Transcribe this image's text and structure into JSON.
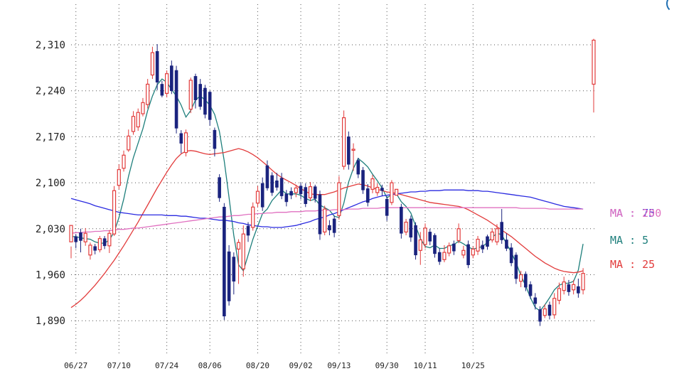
{
  "chart_data": {
    "type": "candlestick",
    "title": "",
    "ylim": [
      1860,
      2370
    ],
    "yticks": [
      "2,310",
      "2,240",
      "2,170",
      "2,100",
      "2,030",
      "1,960",
      "1,890"
    ],
    "ytick_values": [
      2310,
      2240,
      2170,
      2100,
      2030,
      1960,
      1890
    ],
    "xticks": [
      {
        "label": "06/27",
        "index": 1
      },
      {
        "label": "07/10",
        "index": 10
      },
      {
        "label": "07/24",
        "index": 20
      },
      {
        "label": "08/06",
        "index": 29
      },
      {
        "label": "08/20",
        "index": 39
      },
      {
        "label": "09/02",
        "index": 48
      },
      {
        "label": "09/13",
        "index": 56
      },
      {
        "label": "09/30",
        "index": 66
      },
      {
        "label": "10/11",
        "index": 74
      },
      {
        "label": "10/25",
        "index": 84
      }
    ],
    "grid": true,
    "up_color": "#e23b3b",
    "down_color": "#1a237e",
    "candles": [
      [
        2010,
        2035,
        2003,
        1985
      ],
      [
        2018,
        2010,
        2022,
        2000
      ],
      [
        2024,
        2012,
        2030,
        1994
      ],
      [
        2010,
        2023,
        2031,
        2004
      ],
      [
        1990,
        2005,
        2009,
        1983
      ],
      [
        2003,
        1997,
        2007,
        1991
      ],
      [
        1998,
        2015,
        2019,
        1994
      ],
      [
        2015,
        2004,
        2019,
        1999
      ],
      [
        2004,
        2023,
        2028,
        1993
      ],
      [
        2022,
        2088,
        2095,
        2019
      ],
      [
        2096,
        2120,
        2128,
        2090
      ],
      [
        2122,
        2142,
        2149,
        2117
      ],
      [
        2150,
        2171,
        2181,
        2147
      ],
      [
        2178,
        2201,
        2209,
        2173
      ],
      [
        2185,
        2207,
        2213,
        2179
      ],
      [
        2205,
        2222,
        2229,
        2201
      ],
      [
        2219,
        2250,
        2258,
        2213
      ],
      [
        2264,
        2298,
        2307,
        2258
      ],
      [
        2300,
        2253,
        2311,
        2241
      ],
      [
        2250,
        2233,
        2255,
        2230
      ],
      [
        2236,
        2266,
        2271,
        2230
      ],
      [
        2278,
        2240,
        2286,
        2235
      ],
      [
        2271,
        2183,
        2278,
        2175
      ],
      [
        2175,
        2160,
        2180,
        2145
      ],
      [
        2146,
        2176,
        2181,
        2140
      ],
      [
        2212,
        2256,
        2260,
        2206
      ],
      [
        2262,
        2226,
        2266,
        2213
      ],
      [
        2250,
        2216,
        2258,
        2211
      ],
      [
        2244,
        2204,
        2249,
        2198
      ],
      [
        2238,
        2196,
        2240,
        2187
      ],
      [
        2180,
        2152,
        2184,
        2140
      ],
      [
        2108,
        2077,
        2113,
        2071
      ],
      [
        2063,
        1897,
        2069,
        1891
      ],
      [
        1995,
        1920,
        2005,
        1913
      ],
      [
        1987,
        1950,
        1994,
        1930
      ],
      [
        1999,
        2009,
        2014,
        1946
      ],
      [
        1969,
        2022,
        2035,
        1957
      ],
      [
        2034,
        2020,
        2040,
        2010
      ],
      [
        2032,
        2063,
        2070,
        2027
      ],
      [
        2069,
        2087,
        2095,
        2063
      ],
      [
        2099,
        2063,
        2108,
        2057
      ],
      [
        2126,
        2092,
        2134,
        2088
      ],
      [
        2111,
        2085,
        2116,
        2080
      ],
      [
        2103,
        2093,
        2115,
        2088
      ],
      [
        2107,
        2080,
        2115,
        2075
      ],
      [
        2083,
        2071,
        2089,
        2064
      ],
      [
        2087,
        2081,
        2093,
        2075
      ],
      [
        2085,
        2092,
        2097,
        2078
      ],
      [
        2095,
        2083,
        2100,
        2075
      ],
      [
        2093,
        2068,
        2099,
        2063
      ],
      [
        2077,
        2094,
        2101,
        2072
      ],
      [
        2094,
        2076,
        2097,
        2070
      ],
      [
        2082,
        2022,
        2088,
        2013
      ],
      [
        2025,
        2060,
        2065,
        2020
      ],
      [
        2035,
        2028,
        2043,
        2020
      ],
      [
        2045,
        2024,
        2050,
        2017
      ],
      [
        2050,
        2100,
        2110,
        2044
      ],
      [
        2125,
        2199,
        2210,
        2120
      ],
      [
        2170,
        2128,
        2178,
        2120
      ],
      [
        2150,
        2151,
        2160,
        2118
      ],
      [
        2134,
        2113,
        2138,
        2107
      ],
      [
        2119,
        2089,
        2124,
        2083
      ],
      [
        2091,
        2070,
        2098,
        2064
      ],
      [
        2090,
        2106,
        2112,
        2084
      ],
      [
        2085,
        2093,
        2099,
        2080
      ],
      [
        2092,
        2088,
        2097,
        2080
      ],
      [
        2075,
        2050,
        2079,
        2042
      ],
      [
        2070,
        2100,
        2104,
        2066
      ],
      [
        2081,
        2090,
        2088,
        2081
      ],
      [
        2063,
        2023,
        2068,
        2015
      ],
      [
        2025,
        2040,
        2045,
        2020
      ],
      [
        2045,
        2017,
        2050,
        2010
      ],
      [
        2035,
        1990,
        2040,
        1983
      ],
      [
        1997,
        2013,
        2025,
        1975
      ],
      [
        2006,
        2031,
        2038,
        2000
      ],
      [
        2025,
        2011,
        2030,
        2005
      ],
      [
        2020,
        1992,
        2023,
        1986
      ],
      [
        1994,
        1980,
        2000,
        1975
      ],
      [
        1983,
        1994,
        2005,
        1979
      ],
      [
        1993,
        2004,
        2009,
        1988
      ],
      [
        2007,
        1996,
        2012,
        1990
      ],
      [
        2012,
        2030,
        2038,
        2008
      ],
      [
        1990,
        1997,
        2004,
        1985
      ],
      [
        2006,
        1975,
        2012,
        1970
      ],
      [
        1990,
        1999,
        2003,
        1985
      ],
      [
        1996,
        2014,
        2019,
        1990
      ],
      [
        2005,
        1999,
        2012,
        1993
      ],
      [
        2018,
        2003,
        2021,
        1998
      ],
      [
        2013,
        2025,
        2031,
        2009
      ],
      [
        2010,
        2030,
        2037,
        2005
      ],
      [
        2040,
        2013,
        2060,
        2007
      ],
      [
        2013,
        2000,
        2023,
        1996
      ],
      [
        2001,
        1978,
        2008,
        1973
      ],
      [
        1990,
        1954,
        1994,
        1946
      ],
      [
        1950,
        1960,
        1966,
        1941
      ],
      [
        1961,
        1941,
        1965,
        1935
      ],
      [
        1945,
        1928,
        1950,
        1923
      ],
      [
        1925,
        1916,
        1932,
        1907
      ],
      [
        1907,
        1889,
        1912,
        1882
      ],
      [
        1898,
        1908,
        1915,
        1894
      ],
      [
        1914,
        1898,
        1919,
        1892
      ],
      [
        1899,
        1924,
        1932,
        1893
      ],
      [
        1921,
        1939,
        1948,
        1915
      ],
      [
        1936,
        1949,
        1957,
        1930
      ],
      [
        1945,
        1934,
        1952,
        1928
      ],
      [
        1937,
        1945,
        1952,
        1930
      ],
      [
        1942,
        1932,
        1954,
        1925
      ],
      [
        1937,
        1962,
        1970,
        1930
      ],
      [
        2250,
        2317,
        2319,
        2207
      ]
    ],
    "series": [
      {
        "name": "MA : 5",
        "color": "#1e7f7c",
        "values": [
          2018,
          2018,
          2016,
          2015,
          2014,
          2010,
          2008,
          2008,
          2013,
          2025,
          2047,
          2075,
          2110,
          2138,
          2160,
          2182,
          2210,
          2232,
          2249,
          2258,
          2253,
          2242,
          2232,
          2218,
          2200,
          2210,
          2226,
          2232,
          2226,
          2218,
          2204,
          2178,
          2133,
          2078,
          2020,
          1975,
          1966,
          1990,
          2014,
          2034,
          2053,
          2060,
          2073,
          2081,
          2089,
          2083,
          2083,
          2083,
          2081,
          2076,
          2073,
          2075,
          2066,
          2062,
          2058,
          2049,
          2047,
          2069,
          2101,
          2122,
          2137,
          2131,
          2124,
          2113,
          2103,
          2092,
          2077,
          2082,
          2083,
          2071,
          2064,
          2054,
          2034,
          2015,
          2003,
          2001,
          2005,
          2000,
          2000,
          2004,
          2006,
          2011,
          2007,
          2002,
          1999,
          2001,
          2003,
          2009,
          2017,
          2023,
          2021,
          2007,
          1994,
          1978,
          1959,
          1943,
          1925,
          1910,
          1905,
          1914,
          1925,
          1937,
          1944,
          1947,
          1947,
          1950,
          1967,
          2007
        ]
      },
      {
        "name": "MA : 25",
        "color": "#e23b3b",
        "values": [
          1910,
          1915,
          1921,
          1928,
          1936,
          1944,
          1953,
          1962,
          1972,
          1982,
          1993,
          2004,
          2016,
          2028,
          2040,
          2053,
          2066,
          2079,
          2092,
          2104,
          2116,
          2127,
          2137,
          2144,
          2148,
          2149,
          2148,
          2146,
          2144,
          2143,
          2144,
          2145,
          2146,
          2148,
          2150,
          2152,
          2150,
          2147,
          2143,
          2138,
          2132,
          2126,
          2119,
          2113,
          2108,
          2104,
          2100,
          2096,
          2091,
          2087,
          2083,
          2082,
          2082,
          2082,
          2084,
          2086,
          2089,
          2092,
          2094,
          2096,
          2098,
          2097,
          2095,
          2092,
          2090,
          2088,
          2086,
          2085,
          2084,
          2082,
          2080,
          2078,
          2076,
          2074,
          2072,
          2070,
          2069,
          2068,
          2067,
          2066,
          2065,
          2064,
          2062,
          2059,
          2055,
          2051,
          2047,
          2043,
          2038,
          2033,
          2028,
          2023,
          2018,
          2012,
          2006,
          2000,
          1994,
          1988,
          1983,
          1978,
          1974,
          1970,
          1967,
          1965,
          1964,
          1963,
          1964,
          1966
        ]
      },
      {
        "name": "MA : 75",
        "color": "#2a2ae0",
        "values": [
          2076,
          2074,
          2072,
          2070,
          2068,
          2065,
          2063,
          2061,
          2059,
          2057,
          2055,
          2054,
          2053,
          2052,
          2051,
          2051,
          2051,
          2051,
          2051,
          2051,
          2050,
          2050,
          2050,
          2049,
          2049,
          2048,
          2047,
          2046,
          2046,
          2045,
          2044,
          2043,
          2043,
          2042,
          2041,
          2039,
          2038,
          2036,
          2035,
          2034,
          2033,
          2033,
          2032,
          2032,
          2032,
          2033,
          2034,
          2035,
          2037,
          2039,
          2041,
          2044,
          2046,
          2048,
          2051,
          2053,
          2056,
          2059,
          2062,
          2065,
          2068,
          2071,
          2073,
          2076,
          2078,
          2080,
          2081,
          2082,
          2083,
          2084,
          2085,
          2086,
          2086,
          2087,
          2087,
          2088,
          2088,
          2088,
          2089,
          2089,
          2089,
          2089,
          2089,
          2088,
          2088,
          2088,
          2087,
          2087,
          2086,
          2085,
          2084,
          2083,
          2082,
          2081,
          2080,
          2079,
          2078,
          2076,
          2074,
          2072,
          2070,
          2068,
          2066,
          2064,
          2063,
          2062,
          2061,
          2060
        ]
      },
      {
        "name": "MA : 200",
        "color": "#e070c0",
        "values": [
          2023,
          2024,
          2024,
          2025,
          2025,
          2026,
          2026,
          2027,
          2027,
          2028,
          2029,
          2029,
          2030,
          2031,
          2031,
          2032,
          2033,
          2034,
          2035,
          2036,
          2037,
          2038,
          2039,
          2040,
          2041,
          2042,
          2043,
          2044,
          2045,
          2046,
          2047,
          2048,
          2048,
          2049,
          2050,
          2050,
          2051,
          2052,
          2052,
          2053,
          2053,
          2054,
          2054,
          2055,
          2055,
          2055,
          2056,
          2056,
          2056,
          2057,
          2057,
          2057,
          2058,
          2058,
          2058,
          2059,
          2059,
          2059,
          2060,
          2060,
          2060,
          2061,
          2061,
          2061,
          2061,
          2062,
          2062,
          2062,
          2062,
          2062,
          2062,
          2062,
          2062,
          2062,
          2062,
          2062,
          2062,
          2062,
          2062,
          2062,
          2062,
          2062,
          2062,
          2062,
          2062,
          2062,
          2062,
          2062,
          2062,
          2062,
          2062,
          2062,
          2062,
          2062,
          2061,
          2061,
          2061,
          2061,
          2061,
          2061,
          2060,
          2060,
          2060,
          2060,
          2060,
          2060,
          2060,
          2060
        ]
      }
    ],
    "legend": [
      {
        "label": "MA : 75",
        "color": "#2a2ae0"
      },
      {
        "label": "MA : 200",
        "color": "#e070c0"
      },
      {
        "label": "MA : 5",
        "color": "#1e7f7c"
      },
      {
        "label": "MA : 25",
        "color": "#e23b3b"
      }
    ]
  }
}
